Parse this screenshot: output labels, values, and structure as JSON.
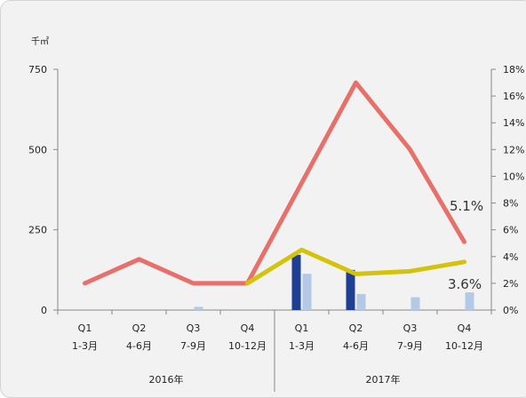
{
  "chart_data": {
    "type": "bar+line",
    "y_left_unit": "千㎡",
    "y_left_ticks": [
      "750",
      "500",
      "250",
      "0"
    ],
    "y_left_lim": [
      0,
      750
    ],
    "y_right_ticks": [
      "18%",
      "16%",
      "14%",
      "12%",
      "10%",
      "8%",
      "6%",
      "4%",
      "2%",
      "0%"
    ],
    "y_right_lim": [
      0,
      18
    ],
    "categories": [
      {
        "q": "Q1",
        "m": "1-3月"
      },
      {
        "q": "Q2",
        "m": "4-6月"
      },
      {
        "q": "Q3",
        "m": "7-9月"
      },
      {
        "q": "Q4",
        "m": "10-12月"
      },
      {
        "q": "Q1",
        "m": "1-3月"
      },
      {
        "q": "Q2",
        "m": "4-6月"
      },
      {
        "q": "Q3",
        "m": "7-9月"
      },
      {
        "q": "Q4",
        "m": "10-12月"
      }
    ],
    "year_groups": [
      "2016年",
      "2017年"
    ],
    "bars_dark": [
      0,
      0,
      0,
      0,
      172,
      125,
      0,
      0
    ],
    "bars_light": [
      0,
      0,
      10,
      0,
      113,
      50,
      40,
      55
    ],
    "line_red_pct": [
      2.0,
      3.8,
      2.0,
      2.0,
      9.5,
      17.0,
      12.0,
      5.1
    ],
    "line_yellow_pct": [
      null,
      null,
      null,
      2.0,
      4.5,
      2.7,
      2.9,
      3.6
    ],
    "annotations": [
      "5.1%",
      "3.6%"
    ],
    "colors": {
      "bar_dark": "#1f3f94",
      "bar_light": "#b3c9e5",
      "line_red": "#e8706b",
      "line_yellow": "#d4c30a"
    }
  }
}
